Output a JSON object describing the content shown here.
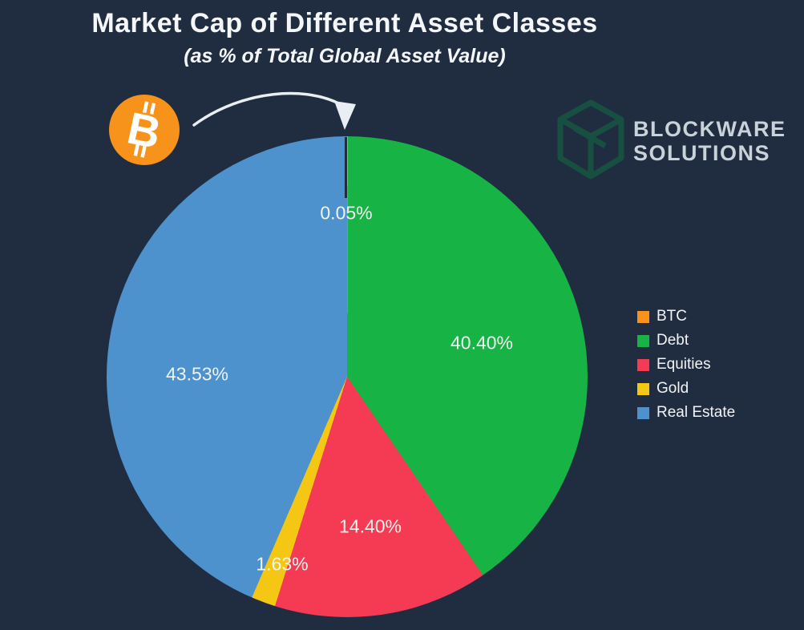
{
  "theme": {
    "background": "#202c40",
    "title_color": "#f4f6f8",
    "slice_label_color": "#eef4f0",
    "legend_text_color": "#f2f4f6",
    "logo_green": "#175040",
    "logo_text_color": "#c9d2d8",
    "arrow_color": "#e9eef2",
    "bitcoin_orange": "#f7931a"
  },
  "icons": {
    "bitcoin_symbol": "B"
  },
  "branding": {
    "name_line1": "BLOCKWARE",
    "name_line2": "SOLUTIONS"
  },
  "chart_data": {
    "type": "pie",
    "title": "Market Cap of Different Asset Classes",
    "subtitle": "(as % of Total Global Asset Value)",
    "unit": "%",
    "start_angle": "top",
    "direction": "clockwise",
    "legend_position": "right",
    "series": [
      {
        "name": "BTC",
        "value": 0.05,
        "label": "0.05%",
        "color": "#f7931a"
      },
      {
        "name": "Debt",
        "value": 40.4,
        "label": "40.40%",
        "color": "#17b345"
      },
      {
        "name": "Equities",
        "value": 14.4,
        "label": "14.40%",
        "color": "#f43b53"
      },
      {
        "name": "Gold",
        "value": 1.63,
        "label": "1.63%",
        "color": "#f3c713"
      },
      {
        "name": "Real Estate",
        "value": 43.53,
        "label": "43.53%",
        "color": "#4d92cc"
      }
    ]
  }
}
